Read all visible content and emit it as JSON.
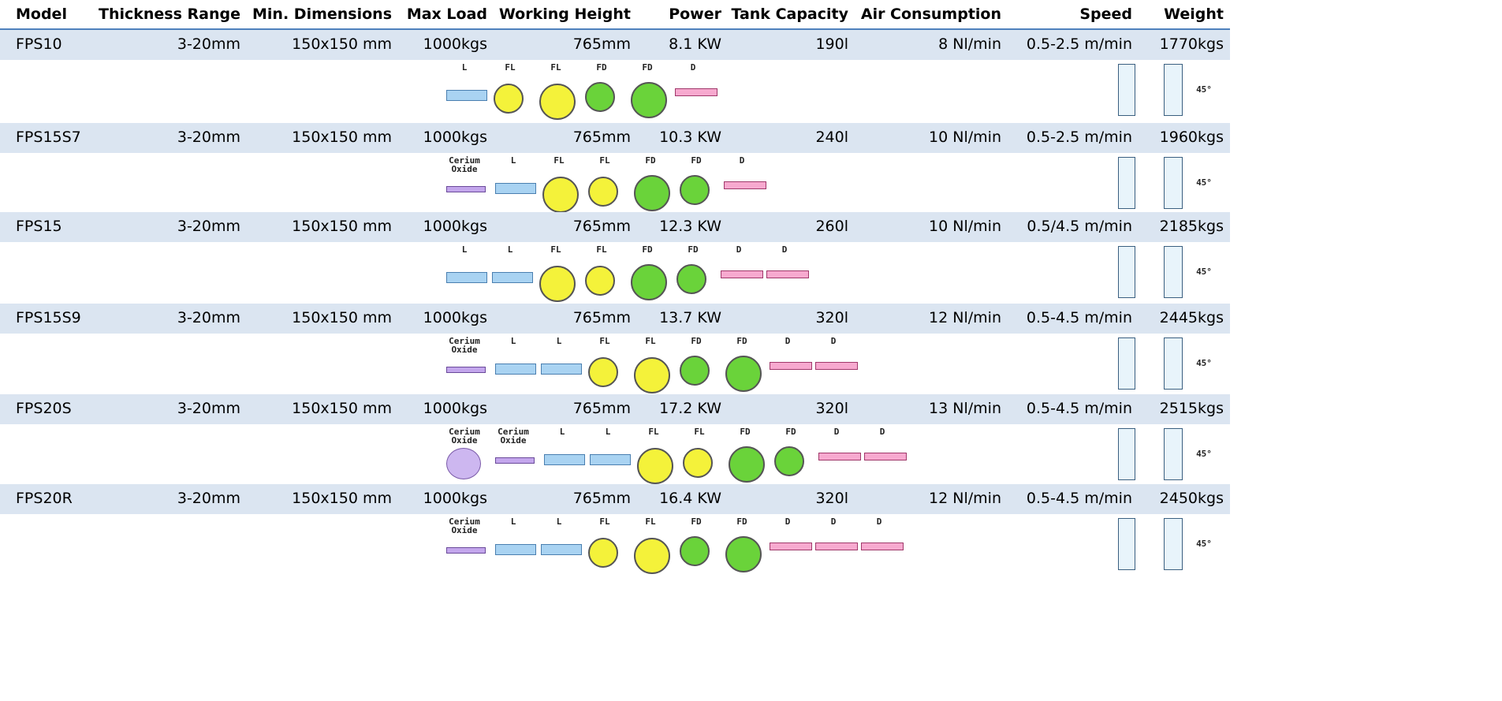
{
  "table": {
    "columns": [
      "Model",
      "Thickness Range",
      "Min. Dimensions",
      "Max Load",
      "Working Height",
      "Power",
      "Tank Capacity",
      "Air Consumption",
      "Speed",
      "Weight"
    ],
    "bevel_angle": "45°",
    "rows": [
      {
        "cells": [
          "FPS10",
          "3-20mm",
          "150x150 mm",
          "1000kgs",
          "765mm",
          "8.1 KW",
          "190l",
          "8 Nl/min",
          "0.5-2.5 m/min",
          "1770kgs"
        ],
        "tools": [
          "L",
          "FL",
          "FL",
          "FD",
          "FD",
          "D"
        ]
      },
      {
        "cells": [
          "FPS15S7",
          "3-20mm",
          "150x150 mm",
          "1000kgs",
          "765mm",
          "10.3 KW",
          "240l",
          "10 Nl/min",
          "0.5-2.5 m/min",
          "1960kgs"
        ],
        "tools": [
          "Cerium Oxide",
          "L",
          "FL",
          "FL",
          "FD",
          "FD",
          "D"
        ]
      },
      {
        "cells": [
          "FPS15",
          "3-20mm",
          "150x150 mm",
          "1000kgs",
          "765mm",
          "12.3 KW",
          "260l",
          "10 Nl/min",
          "0.5/4.5 m/min",
          "2185kgs"
        ],
        "tools": [
          "L",
          "L",
          "FL",
          "FL",
          "FD",
          "FD",
          "D",
          "D"
        ]
      },
      {
        "cells": [
          "FPS15S9",
          "3-20mm",
          "150x150 mm",
          "1000kgs",
          "765mm",
          "13.7 KW",
          "320l",
          "12 Nl/min",
          "0.5-4.5 m/min",
          "2445kgs"
        ],
        "tools": [
          "Cerium Oxide",
          "L",
          "L",
          "FL",
          "FL",
          "FD",
          "FD",
          "D",
          "D"
        ]
      },
      {
        "cells": [
          "FPS20S",
          "3-20mm",
          "150x150 mm",
          "1000kgs",
          "765mm",
          "17.2 KW",
          "320l",
          "13 Nl/min",
          "0.5-4.5 m/min",
          "2515kgs"
        ],
        "tools": [
          "Cerium Oxide",
          "Cerium Oxide",
          "L",
          "L",
          "FL",
          "FL",
          "FD",
          "FD",
          "D",
          "D"
        ]
      },
      {
        "cells": [
          "FPS20R",
          "3-20mm",
          "150x150 mm",
          "1000kgs",
          "765mm",
          "16.4 KW",
          "320l",
          "12 Nl/min",
          "0.5-4.5 m/min",
          "2450kgs"
        ],
        "tools": [
          "Cerium Oxide",
          "L",
          "L",
          "FL",
          "FL",
          "FD",
          "FD",
          "D",
          "D",
          "D"
        ]
      }
    ]
  }
}
